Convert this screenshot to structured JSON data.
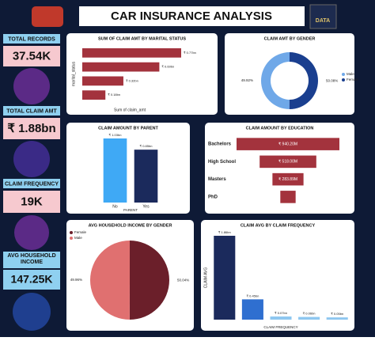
{
  "header": {
    "title": "CAR INSURANCE ANALYSIS",
    "logo": "DATA"
  },
  "kpis": [
    {
      "label": "TOTAL RECORDS",
      "value": "37.54K"
    },
    {
      "label": "TOTAL CLAIM AMT",
      "value": "₹ 1.88bn"
    },
    {
      "label": "CLAIM FREQUENCY",
      "value": "19K"
    },
    {
      "label": "AVG HOUSEHOLD INCOME",
      "value": "147.25K"
    }
  ],
  "chart_data": [
    {
      "type": "hbar",
      "title": "SUM OF CLAIM AMT BY MARITAL STATUS",
      "x_label": "Sum of claim_amt",
      "y_label": "marital_status",
      "categories": [
        null,
        null,
        null,
        null
      ],
      "values": [
        0.77,
        0.6,
        0.32,
        0.18
      ],
      "value_labels": [
        "₹ 0.77bn",
        "₹ 0.60bn",
        "₹ 0.32bn",
        "₹ 0.18bn"
      ],
      "color": "#a3333d"
    },
    {
      "type": "donut",
      "title": "CLAIM AMT BY GENDER",
      "categories": [
        "Male",
        "Female"
      ],
      "values": [
        49.92,
        50.08
      ],
      "value_labels": [
        "49.92%",
        "50.08%"
      ],
      "colors": [
        "#6fa8e8",
        "#1a3f8f"
      ],
      "legend": "right"
    },
    {
      "type": "bar",
      "title": "CLAIM AMOUNT BY PARENT",
      "x_label": "PARENT",
      "categories": [
        "No",
        "Yes"
      ],
      "values": [
        1.03,
        0.85
      ],
      "value_labels": [
        "₹ 1.03bn",
        "₹ 0.85bn"
      ],
      "colors": [
        "#3fa9f5",
        "#1b2a5c"
      ]
    },
    {
      "type": "funnel",
      "title": "CLAIM AMOUNT BY EDUCATION",
      "categories": [
        "Bachelors",
        "High School",
        "Masters",
        "PhD"
      ],
      "values": [
        940.2,
        518.0,
        283.89,
        140
      ],
      "value_labels": [
        "₹ 940.20M",
        "₹ 518.00M",
        "₹ 283.89M",
        null
      ],
      "color": "#a3333d"
    },
    {
      "type": "pie",
      "title": "AVG HOUSEHOLD INCOME BY GENDER",
      "categories": [
        "Female",
        "Male"
      ],
      "values": [
        50.04,
        49.96
      ],
      "value_labels": [
        "50.04%",
        "49.96%"
      ],
      "colors": [
        "#6b1f2a",
        "#e07070"
      ],
      "legend": "top-left"
    },
    {
      "type": "bar",
      "title": "CLAIM AVG BY CLAIM FREQUENCY",
      "x_label": "CLAIM FREQUENCY",
      "y_label": "CLAIM AVG",
      "categories": [
        null,
        null,
        null,
        null,
        null
      ],
      "values": [
        1.86,
        0.45,
        0.07,
        0.06,
        0.05
      ],
      "value_labels": [
        "₹ 1.86bn",
        "₹ 0.45bn",
        "₹ 0.07bn",
        "₹ 0.06bn",
        "₹ 0.05bn"
      ],
      "colors": [
        "#1b2a5c",
        "#2f6fd0",
        "#8ec7f0",
        "#8ec7f0",
        "#8ec7f0"
      ]
    }
  ]
}
